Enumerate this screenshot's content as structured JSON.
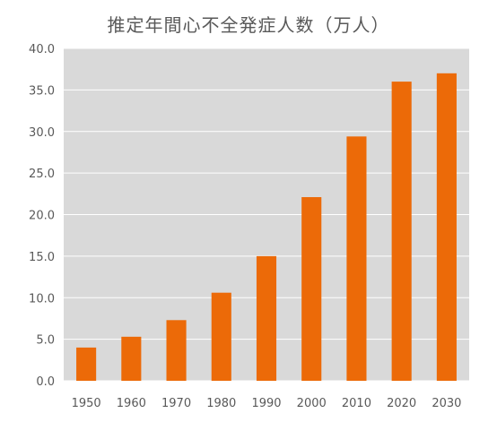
{
  "chart_data": {
    "type": "bar",
    "title": "推定年間心不全発症人数（万人）",
    "xlabel": "",
    "ylabel": "",
    "categories": [
      "1950",
      "1960",
      "1970",
      "1980",
      "1990",
      "2000",
      "2010",
      "2020",
      "2030"
    ],
    "values": [
      4.0,
      5.3,
      7.3,
      10.6,
      15.0,
      22.1,
      29.4,
      36.0,
      37.0
    ],
    "ylim": [
      0,
      40
    ],
    "yticks": [
      "0.0",
      "5.0",
      "10.0",
      "15.0",
      "20.0",
      "25.0",
      "30.0",
      "35.0",
      "40.0"
    ],
    "grid": true,
    "legend": "none",
    "colors": {
      "bar": "#EC6A08",
      "plot_background": "#D9D9D9",
      "gridline": "#FFFFFF",
      "text": "#595959"
    }
  }
}
